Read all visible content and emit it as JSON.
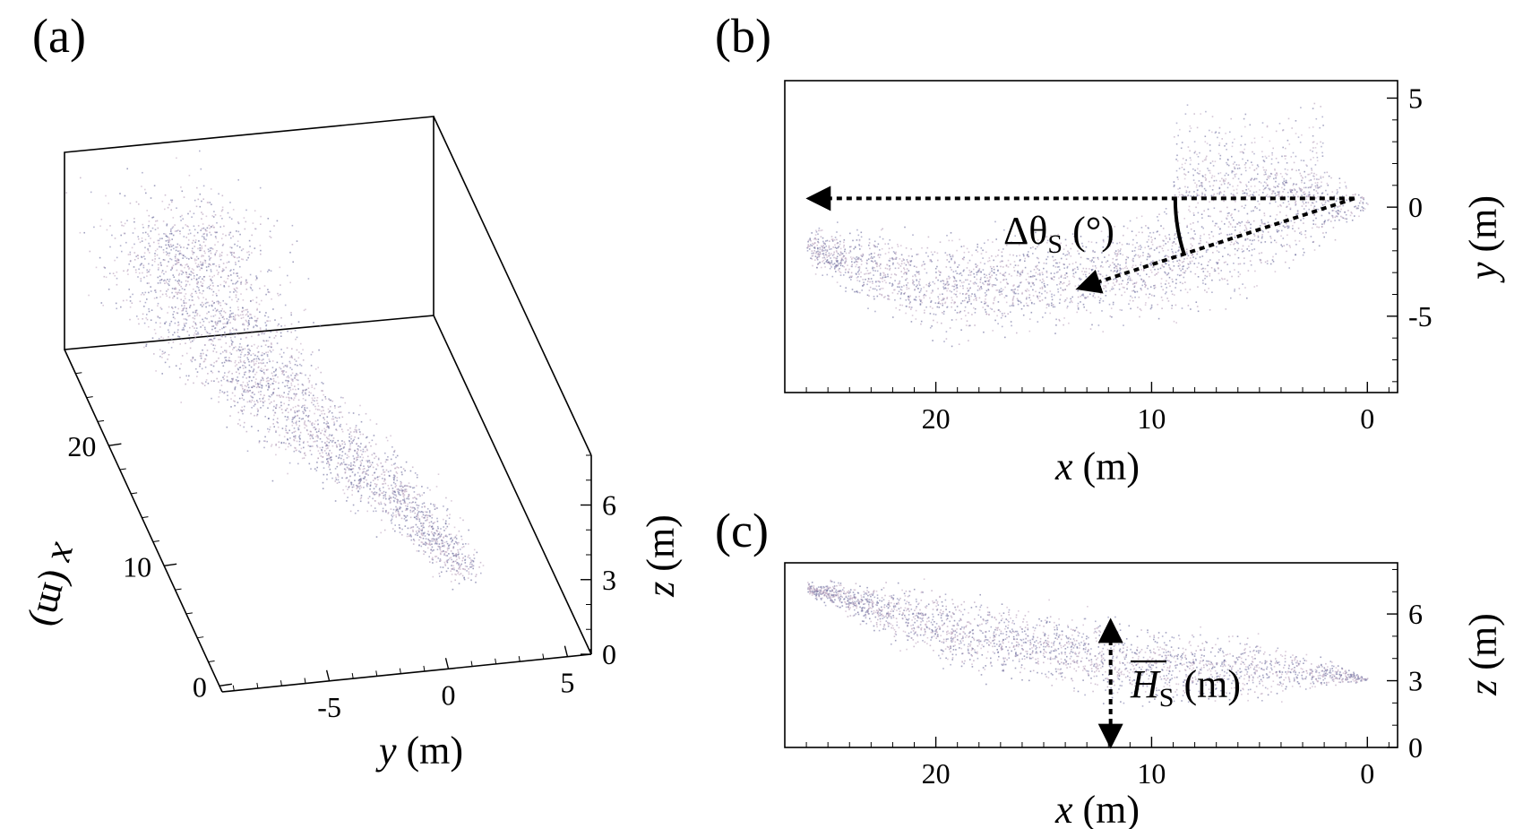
{
  "chart_data": [
    {
      "panel_label": "(a)",
      "type": "scatter",
      "projection": "3d-oblique",
      "xlabel_var": "x",
      "xlabel_unit": "(m)",
      "ylabel_var": "y",
      "ylabel_unit": "(m)",
      "zlabel_var": "z",
      "zlabel_unit": "(m)",
      "x_ticks": [
        {
          "v": 0,
          "label": "0"
        },
        {
          "v": 10,
          "label": "10"
        },
        {
          "v": 20,
          "label": "20"
        }
      ],
      "y_ticks": [
        {
          "v": -5,
          "label": "-5"
        },
        {
          "v": 0,
          "label": "0"
        },
        {
          "v": 5,
          "label": "5"
        }
      ],
      "z_ticks": [
        {
          "v": 0,
          "label": "0"
        },
        {
          "v": 3,
          "label": "3"
        },
        {
          "v": 6,
          "label": "6"
        }
      ],
      "xlim": [
        -0.5,
        28
      ],
      "ylim": [
        -9.5,
        6
      ],
      "zlim": [
        0,
        8
      ],
      "point_colors": [
        "#8a8ab4",
        "#b49cb8",
        "#6e6e9c",
        "#c7b1c8"
      ],
      "grid": false,
      "plume_path_xy": [
        [
          1,
          1
        ],
        [
          3,
          0.6
        ],
        [
          5,
          0
        ],
        [
          7,
          -0.8
        ],
        [
          9,
          -1.6
        ],
        [
          11,
          -2.6
        ],
        [
          13,
          -3.4
        ],
        [
          15,
          -4.0
        ],
        [
          17,
          -4.6
        ],
        [
          19,
          -5.0
        ],
        [
          21,
          -5.3
        ],
        [
          23,
          -5.4
        ],
        [
          25,
          -5.2
        ],
        [
          27,
          -4.8
        ]
      ]
    },
    {
      "panel_label": "(b)",
      "type": "scatter",
      "view": "top",
      "xlabel_var": "x",
      "xlabel_unit": "(m)",
      "ylabel_var": "y",
      "ylabel_unit": "(m)",
      "xlim": [
        27,
        -1.4
      ],
      "ylim": [
        -8.5,
        5.8
      ],
      "x_ticks": [
        {
          "v": 20,
          "label": "20"
        },
        {
          "v": 10,
          "label": "10"
        },
        {
          "v": 0,
          "label": "0"
        }
      ],
      "y_ticks": [
        {
          "v": -5,
          "label": "-5"
        },
        {
          "v": 0,
          "label": "0"
        },
        {
          "v": 5,
          "label": "5"
        }
      ],
      "annotation": {
        "symbol": "Δθ",
        "subscript": "S",
        "suffix": " (°)"
      },
      "arrow_origin": [
        0.6,
        0.4
      ],
      "arrow_horizontal_end": [
        25.8,
        0.4
      ],
      "arrow_angled_end": [
        13.3,
        -3.7
      ],
      "point_colors": [
        "#8a8ab4",
        "#b49cb8",
        "#6e6e9c",
        "#c7b1c8"
      ],
      "grid": false
    },
    {
      "panel_label": "(c)",
      "type": "scatter",
      "view": "side",
      "xlabel_var": "x",
      "xlabel_unit": "(m)",
      "ylabel_var": "z",
      "ylabel_unit": "(m)",
      "xlim": [
        27,
        -1.4
      ],
      "ylim": [
        0,
        8.3
      ],
      "x_ticks": [
        {
          "v": 20,
          "label": "20"
        },
        {
          "v": 10,
          "label": "10"
        },
        {
          "v": 0,
          "label": "0"
        }
      ],
      "y_ticks": [
        {
          "v": 0,
          "label": "0"
        },
        {
          "v": 3,
          "label": "3"
        },
        {
          "v": 6,
          "label": "6"
        }
      ],
      "annotation": {
        "symbol": "H",
        "subscript": "S",
        "suffix": " (m)",
        "overline": true
      },
      "height_arrow_x": 11.9,
      "height_arrow_range": [
        0,
        5.6
      ],
      "point_colors": [
        "#8a8ab4",
        "#b49cb8",
        "#6e6e9c",
        "#c7b1c8"
      ],
      "grid": false
    }
  ]
}
